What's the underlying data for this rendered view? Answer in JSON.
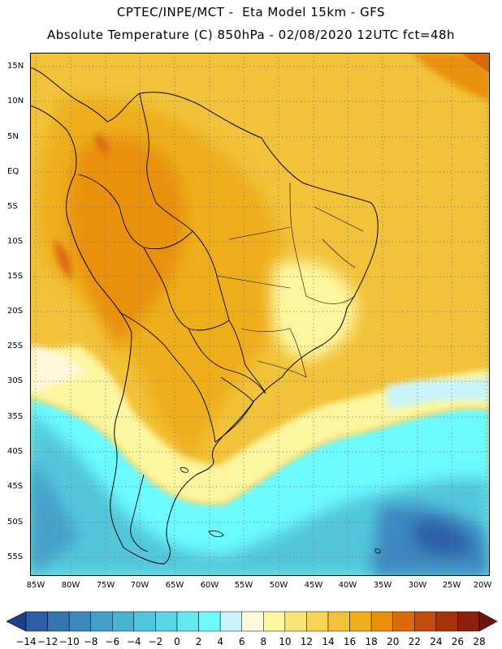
{
  "header": {
    "line1": "CPTEC/INPE/MCT -  Eta Model 15km - GFS",
    "line2": "Absolute Temperature (C) 850hPa - 02/08/2020 12UTC fct=48h"
  },
  "map": {
    "latitude_labels": [
      "15N",
      "10N",
      "5N",
      "EQ",
      "5S",
      "10S",
      "15S",
      "20S",
      "25S",
      "30S",
      "35S",
      "40S",
      "45S",
      "50S",
      "55S"
    ],
    "longitude_labels": [
      "85W",
      "80W",
      "75W",
      "70W",
      "65W",
      "60W",
      "55W",
      "50W",
      "45W",
      "40W",
      "35W",
      "30W",
      "25W",
      "20W"
    ],
    "grid": "dotted",
    "features": [
      "South America coastline",
      "country borders",
      "Brazil state borders"
    ]
  },
  "colorbar": {
    "labels": [
      "-14",
      "-12",
      "-10",
      "-8",
      "-6",
      "-4",
      "-2",
      "0",
      "2",
      "4",
      "6",
      "8",
      "10",
      "12",
      "14",
      "16",
      "18",
      "20",
      "22",
      "24",
      "26",
      "28"
    ],
    "colors": [
      "#1f3f8c",
      "#2b5ea6",
      "#3474b0",
      "#3d88bf",
      "#44a0c8",
      "#4bb3d2",
      "#52c6dc",
      "#5ad6e6",
      "#66e8f0",
      "#6cfaff",
      "#c8f4fa",
      "#fff8dc",
      "#fdf6a0",
      "#f9e476",
      "#f5d458",
      "#f2c23a",
      "#eeae1c",
      "#e99008",
      "#db6a0a",
      "#c44c0c",
      "#a8320c",
      "#8c200c",
      "#6e1410"
    ]
  }
}
